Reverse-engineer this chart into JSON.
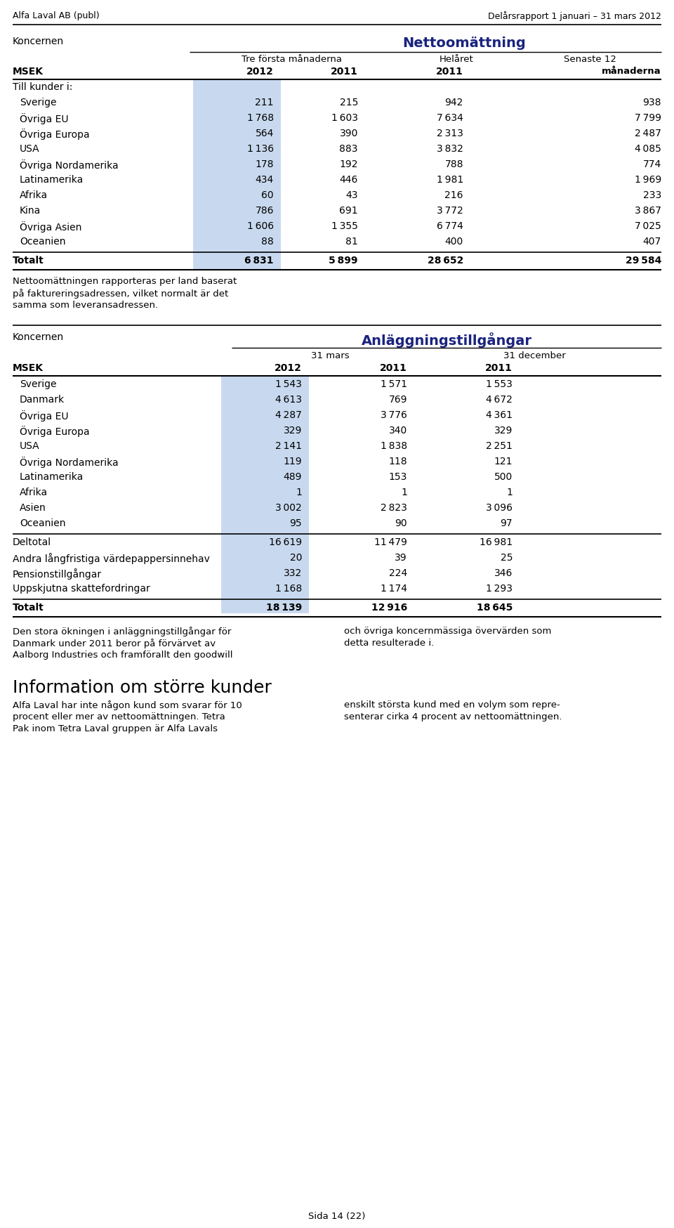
{
  "header_left": "Alfa Laval AB (publ)",
  "header_right": "Delårsrapport 1 januari – 31 mars 2012",
  "bg_color": "#ffffff",
  "highlight_color": "#c8d9ef",
  "table1_title": "Nettoomättning",
  "table1_title_color": "#1a237e",
  "table1_col_header1": "Tre första månaderna",
  "table1_col_header2": "Helåret",
  "table1_col_header3": "Senaste 12",
  "table1_col_header3b": "månaderna",
  "table1_section": "Till kunder i:",
  "table1_rows": [
    [
      "Sverige",
      "211",
      "215",
      "942",
      "938"
    ],
    [
      "Övriga EU",
      "1 768",
      "1 603",
      "7 634",
      "7 799"
    ],
    [
      "Övriga Europa",
      "564",
      "390",
      "2 313",
      "2 487"
    ],
    [
      "USA",
      "1 136",
      "883",
      "3 832",
      "4 085"
    ],
    [
      "Övriga Nordamerika",
      "178",
      "192",
      "788",
      "774"
    ],
    [
      "Latinamerika",
      "434",
      "446",
      "1 981",
      "1 969"
    ],
    [
      "Afrika",
      "60",
      "43",
      "216",
      "233"
    ],
    [
      "Kina",
      "786",
      "691",
      "3 772",
      "3 867"
    ],
    [
      "Övriga Asien",
      "1 606",
      "1 355",
      "6 774",
      "7 025"
    ],
    [
      "Oceanien",
      "88",
      "81",
      "400",
      "407"
    ]
  ],
  "table1_total": [
    "Totalt",
    "6 831",
    "5 899",
    "28 652",
    "29 584"
  ],
  "footnote_lines": [
    "Nettoomättningen rapporteras per land baserat",
    "på faktureringsadressen, vilket normalt är det",
    "samma som leveransadressen."
  ],
  "table2_title": "Anläggningstillgångar",
  "table2_title_color": "#1a237e",
  "table2_col_header1": "31 mars",
  "table2_col_header2": "31 december",
  "table2_rows": [
    [
      "Sverige",
      "1 543",
      "1 571",
      "1 553"
    ],
    [
      "Danmark",
      "4 613",
      "769",
      "4 672"
    ],
    [
      "Övriga EU",
      "4 287",
      "3 776",
      "4 361"
    ],
    [
      "Övriga Europa",
      "329",
      "340",
      "329"
    ],
    [
      "USA",
      "2 141",
      "1 838",
      "2 251"
    ],
    [
      "Övriga Nordamerika",
      "119",
      "118",
      "121"
    ],
    [
      "Latinamerika",
      "489",
      "153",
      "500"
    ],
    [
      "Afrika",
      "1",
      "1",
      "1"
    ],
    [
      "Asien",
      "3 002",
      "2 823",
      "3 096"
    ],
    [
      "Oceanien",
      "95",
      "90",
      "97"
    ]
  ],
  "table2_subtotal": [
    "Deltotal",
    "16 619",
    "11 479",
    "16 981"
  ],
  "table2_extra_rows": [
    [
      "Andra långfristiga värdepappersinnehav",
      "20",
      "39",
      "25"
    ],
    [
      "Pensionstillgångar",
      "332",
      "224",
      "346"
    ],
    [
      "Uppskjutna skattefordringar",
      "1 168",
      "1 174",
      "1 293"
    ]
  ],
  "table2_total": [
    "Totalt",
    "18 139",
    "12 916",
    "18 645"
  ],
  "bottom_left_lines": [
    "Den stora ökningen i anläggningstillgångar för",
    "Danmark under 2011 beror på förvärvet av",
    "Aalborg Industries och framförallt den goodwill"
  ],
  "bottom_right_lines": [
    "och övriga koncernmässiga övervärden som",
    "detta resulterade i."
  ],
  "section2_title": "Information om större kunder",
  "section2_left_lines": [
    "Alfa Laval har inte någon kund som svarar för 10",
    "procent eller mer av nettoomättningen. Tetra",
    "Pak inom Tetra Laval gruppen är Alfa Lavals"
  ],
  "section2_right_lines": [
    "enskilt största kund med en volym som repre-",
    "senterar cirka 4 procent av nettoomättningen."
  ],
  "page_footer": "Sida 14 (22)"
}
